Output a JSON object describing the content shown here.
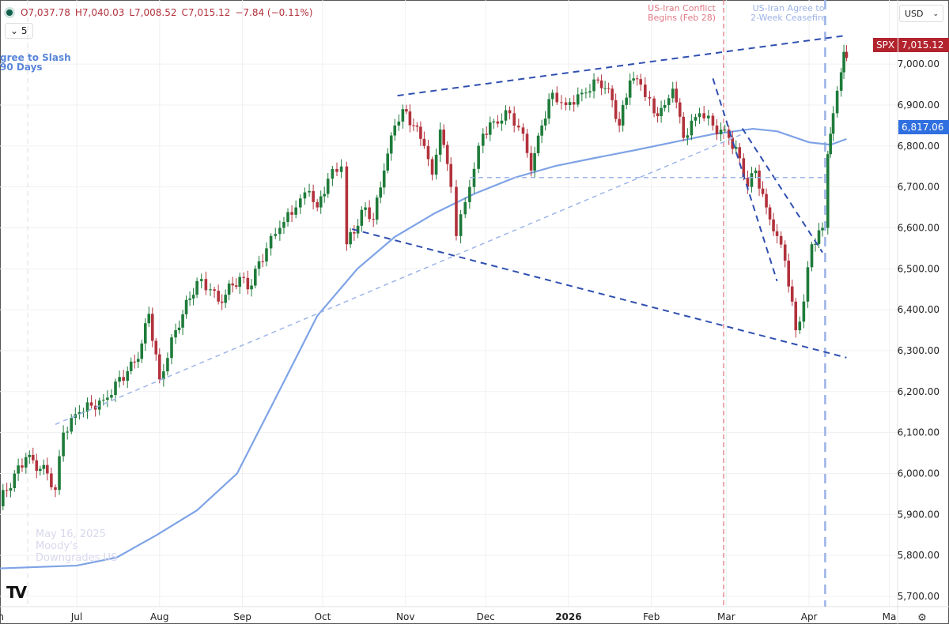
{
  "legend": {
    "open": "O7,037.78",
    "high": "H7,040.03",
    "low": "L7,008.52",
    "close": "C7,015.12",
    "change": "−7.84 (−0.11%)"
  },
  "interval": "5",
  "currency": "USD",
  "symbol_tag": {
    "symbol": "SPX",
    "price": "7,015.12",
    "color": "#b2232e"
  },
  "ma_tag": {
    "value": "6,817.06",
    "color": "#2f6fe0"
  },
  "annotations": {
    "conflict": {
      "line1": "US-Iran Conflict",
      "line2": "Begins (Feb 28)",
      "date": "2026-02-28",
      "color": "#e07a86"
    },
    "ceasefire": {
      "line1": "US-Iran Agree to",
      "line2": "2-Week Ceasefire",
      "date": "2026-04-07",
      "color": "#9cb3e6"
    },
    "slash": {
      "line1": "gree to Slash",
      "line2": "90 Days",
      "color": "#5a86d8"
    },
    "moodys": {
      "line1": "May 16, 2025",
      "line2": "Moody's",
      "line3": "Downgrades US",
      "color": "#dcdcf0"
    }
  },
  "logo": "TV",
  "chart_data": {
    "type": "candlestick",
    "title": "",
    "ylim": [
      5650,
      7100
    ],
    "y_ticks": [
      "5,700.00",
      "5,800.00",
      "5,900.00",
      "6,000.00",
      "6,100.00",
      "6,200.00",
      "6,300.00",
      "6,400.00",
      "6,500.00",
      "6,600.00",
      "6,700.00",
      "6,800.00",
      "6,900.00",
      "7,000.00"
    ],
    "x_ticks": [
      {
        "label": "Jun",
        "date": "2025-06-01"
      },
      {
        "label": "Jul",
        "date": "2025-07-01"
      },
      {
        "label": "Aug",
        "date": "2025-08-01"
      },
      {
        "label": "Sep",
        "date": "2025-09-01"
      },
      {
        "label": "Oct",
        "date": "2025-10-01"
      },
      {
        "label": "Nov",
        "date": "2025-11-01"
      },
      {
        "label": "Dec",
        "date": "2025-12-01"
      },
      {
        "label": "2026",
        "date": "2026-01-01"
      },
      {
        "label": "Feb",
        "date": "2026-02-01"
      },
      {
        "label": "Mar",
        "date": "2026-03-01"
      },
      {
        "label": "Apr",
        "date": "2026-04-01"
      },
      {
        "label": "Ma",
        "date": "2026-05-01"
      }
    ],
    "colors": {
      "up": "#1e7b3a",
      "down": "#b2323c",
      "ma": "#7ea3e6",
      "trend": "#2f4fb0",
      "trend_light": "#9db5ea"
    },
    "close": [
      [
        "2025-06-02",
        5930
      ],
      [
        "2025-06-12",
        6040
      ],
      [
        "2025-06-20",
        6000
      ],
      [
        "2025-06-23",
        5960
      ],
      [
        "2025-06-26",
        6100
      ],
      [
        "2025-07-02",
        6150
      ],
      [
        "2025-07-11",
        6180
      ],
      [
        "2025-07-20",
        6250
      ],
      [
        "2025-07-24",
        6280
      ],
      [
        "2025-07-28",
        6390
      ],
      [
        "2025-08-01",
        6230
      ],
      [
        "2025-08-07",
        6350
      ],
      [
        "2025-08-15",
        6470
      ],
      [
        "2025-08-20",
        6450
      ],
      [
        "2025-08-23",
        6420
      ],
      [
        "2025-08-31",
        6480
      ],
      [
        "2025-09-03",
        6450
      ],
      [
        "2025-09-10",
        6550
      ],
      [
        "2025-09-15",
        6600
      ],
      [
        "2025-09-21",
        6650
      ],
      [
        "2025-09-26",
        6690
      ],
      [
        "2025-09-29",
        6650
      ],
      [
        "2025-10-03",
        6720
      ],
      [
        "2025-10-08",
        6750
      ],
      [
        "2025-10-10",
        6560
      ],
      [
        "2025-10-17",
        6650
      ],
      [
        "2025-10-20",
        6620
      ],
      [
        "2025-10-24",
        6740
      ],
      [
        "2025-10-28",
        6850
      ],
      [
        "2025-10-31",
        6890
      ],
      [
        "2025-11-04",
        6850
      ],
      [
        "2025-11-08",
        6800
      ],
      [
        "2025-11-11",
        6730
      ],
      [
        "2025-11-14",
        6840
      ],
      [
        "2025-11-18",
        6700
      ],
      [
        "2025-11-20",
        6580
      ],
      [
        "2025-11-25",
        6700
      ],
      [
        "2025-11-30",
        6830
      ],
      [
        "2025-12-04",
        6860
      ],
      [
        "2025-12-10",
        6880
      ],
      [
        "2025-12-15",
        6830
      ],
      [
        "2025-12-18",
        6740
      ],
      [
        "2025-12-22",
        6850
      ],
      [
        "2025-12-26",
        6930
      ],
      [
        "2025-12-31",
        6900
      ],
      [
        "2026-01-06",
        6930
      ],
      [
        "2026-01-12",
        6960
      ],
      [
        "2026-01-16",
        6940
      ],
      [
        "2026-01-20",
        6850
      ],
      [
        "2026-01-24",
        6960
      ],
      [
        "2026-01-28",
        6950
      ],
      [
        "2026-02-02",
        6880
      ],
      [
        "2026-02-06",
        6900
      ],
      [
        "2026-02-09",
        6940
      ],
      [
        "2026-02-13",
        6820
      ],
      [
        "2026-02-19",
        6880
      ],
      [
        "2026-02-24",
        6850
      ],
      [
        "2026-03-02",
        6820
      ],
      [
        "2026-03-06",
        6770
      ],
      [
        "2026-03-09",
        6700
      ],
      [
        "2026-03-12",
        6740
      ],
      [
        "2026-03-16",
        6650
      ],
      [
        "2026-03-20",
        6580
      ],
      [
        "2026-03-23",
        6520
      ],
      [
        "2026-03-27",
        6350
      ],
      [
        "2026-03-30",
        6420
      ],
      [
        "2026-04-02",
        6560
      ],
      [
        "2026-04-06",
        6600
      ],
      [
        "2026-04-08",
        6780
      ],
      [
        "2026-04-09",
        6830
      ],
      [
        "2026-04-10",
        6880
      ],
      [
        "2026-04-13",
        6980
      ],
      [
        "2026-04-14",
        7030
      ],
      [
        "2026-04-15",
        7015
      ]
    ],
    "moving_average": [
      [
        "2025-06-01",
        5768
      ],
      [
        "2025-07-01",
        5775
      ],
      [
        "2025-07-16",
        5795
      ],
      [
        "2025-07-31",
        5850
      ],
      [
        "2025-08-15",
        5910
      ],
      [
        "2025-08-30",
        6000
      ],
      [
        "2025-09-14",
        6192
      ],
      [
        "2025-09-29",
        6385
      ],
      [
        "2025-10-14",
        6500
      ],
      [
        "2025-10-28",
        6578
      ],
      [
        "2025-11-12",
        6636
      ],
      [
        "2025-11-27",
        6684
      ],
      [
        "2025-12-12",
        6723
      ],
      [
        "2025-12-27",
        6751
      ],
      [
        "2026-01-11",
        6771
      ],
      [
        "2026-01-26",
        6790
      ],
      [
        "2026-02-09",
        6809
      ],
      [
        "2026-02-24",
        6829
      ],
      [
        "2026-03-11",
        6842
      ],
      [
        "2026-03-20",
        6836
      ],
      [
        "2026-04-01",
        6809
      ],
      [
        "2026-04-09",
        6803
      ],
      [
        "2026-04-15",
        6817.06
      ]
    ],
    "trendlines": [
      {
        "from": [
          "2025-10-29",
          6923
        ],
        "to": [
          "2026-04-15",
          7070
        ],
        "style": "dark"
      },
      {
        "from": [
          "2025-10-12",
          6597
        ],
        "to": [
          "2026-04-15",
          6283
        ],
        "style": "dark"
      },
      {
        "from": [
          "2025-02-27",
          6829
        ],
        "to": [
          "2026-03-27",
          6330
        ],
        "style": "dark",
        "skip": true
      },
      {
        "from": [
          "2026-02-24",
          6965
        ],
        "to": [
          "2026-03-20",
          6470
        ],
        "style": "dark"
      },
      {
        "from": [
          "2026-03-07",
          6843
        ],
        "to": [
          "2026-04-06",
          6540
        ],
        "style": "dark"
      },
      {
        "from": [
          "2025-06-23",
          6120
        ],
        "to": [
          "2026-03-07",
          6829
        ],
        "style": "light"
      },
      {
        "from": [
          "2025-11-25",
          6723
        ],
        "to": [
          "2026-04-07",
          6723
        ],
        "style": "light"
      }
    ]
  }
}
